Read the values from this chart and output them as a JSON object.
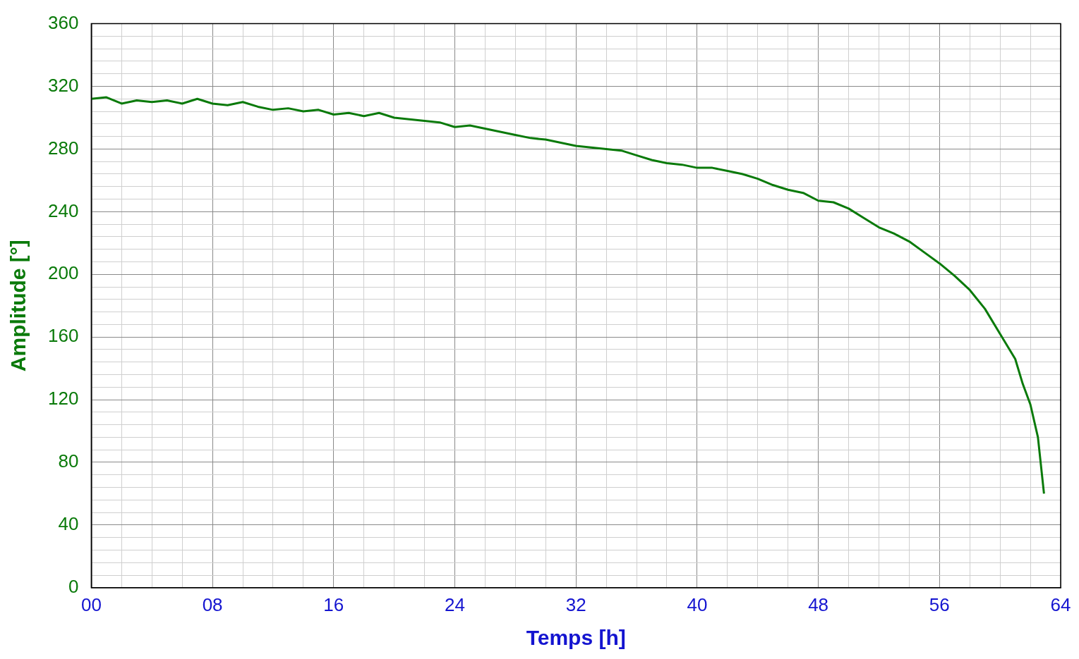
{
  "chart_data": {
    "type": "line",
    "xlabel": "Temps [h]",
    "ylabel": "Amplitude [°]",
    "series": [
      {
        "color": "#0a7a0a",
        "x": [
          0,
          1,
          2,
          3,
          4,
          5,
          6,
          7,
          8,
          9,
          10,
          11,
          12,
          13,
          14,
          15,
          16,
          17,
          18,
          19,
          20,
          21,
          22,
          23,
          24,
          25,
          26,
          27,
          28,
          29,
          30,
          31,
          32,
          33,
          34,
          35,
          36,
          37,
          38,
          39,
          40,
          41,
          42,
          43,
          44,
          45,
          46,
          47,
          48,
          49,
          50,
          51,
          52,
          53,
          54,
          55,
          56,
          57,
          58,
          59,
          60,
          60.5,
          61,
          61.5,
          62,
          62.5,
          62.9
        ],
        "values": [
          312,
          313,
          309,
          311,
          310,
          311,
          309,
          312,
          309,
          308,
          310,
          307,
          305,
          306,
          304,
          305,
          302,
          303,
          301,
          303,
          300,
          299,
          298,
          297,
          294,
          295,
          293,
          291,
          289,
          287,
          286,
          284,
          282,
          281,
          280,
          279,
          276,
          273,
          271,
          270,
          268,
          268,
          266,
          264,
          261,
          257,
          254,
          252,
          247,
          246,
          242,
          236,
          230,
          226,
          221,
          214,
          207,
          199,
          190,
          178,
          162,
          154,
          146,
          130,
          117,
          96,
          60
        ]
      }
    ],
    "xlim": [
      0,
      64
    ],
    "xticks": [
      {
        "value": 0,
        "label": "00"
      },
      {
        "value": 2,
        "label": null
      },
      {
        "value": 4,
        "label": null
      },
      {
        "value": 6,
        "label": null
      },
      {
        "value": 8,
        "label": "08"
      },
      {
        "value": 10,
        "label": null
      },
      {
        "value": 12,
        "label": null
      },
      {
        "value": 14,
        "label": null
      },
      {
        "value": 16,
        "label": "16"
      },
      {
        "value": 18,
        "label": null
      },
      {
        "value": 20,
        "label": null
      },
      {
        "value": 22,
        "label": null
      },
      {
        "value": 24,
        "label": "24"
      },
      {
        "value": 26,
        "label": null
      },
      {
        "value": 28,
        "label": null
      },
      {
        "value": 30,
        "label": null
      },
      {
        "value": 32,
        "label": "32"
      },
      {
        "value": 34,
        "label": null
      },
      {
        "value": 36,
        "label": null
      },
      {
        "value": 38,
        "label": null
      },
      {
        "value": 40,
        "label": "40"
      },
      {
        "value": 42,
        "label": null
      },
      {
        "value": 44,
        "label": null
      },
      {
        "value": 46,
        "label": null
      },
      {
        "value": 48,
        "label": "48"
      },
      {
        "value": 50,
        "label": null
      },
      {
        "value": 52,
        "label": null
      },
      {
        "value": 54,
        "label": null
      },
      {
        "value": 56,
        "label": "56"
      },
      {
        "value": 58,
        "label": null
      },
      {
        "value": 60,
        "label": null
      },
      {
        "value": 62,
        "label": null
      },
      {
        "value": 64,
        "label": "64"
      }
    ],
    "ylim": [
      0,
      360
    ],
    "yticks": [
      0,
      {
        "value": 8,
        "label": null
      },
      {
        "value": 16,
        "label": null
      },
      {
        "value": 24,
        "label": null
      },
      {
        "value": 32,
        "label": null
      },
      40,
      {
        "value": 48,
        "label": null
      },
      {
        "value": 56,
        "label": null
      },
      {
        "value": 64,
        "label": null
      },
      {
        "value": 72,
        "label": null
      },
      80,
      {
        "value": 88,
        "label": null
      },
      {
        "value": 96,
        "label": null
      },
      {
        "value": 104,
        "label": null
      },
      {
        "value": 112,
        "label": null
      },
      120,
      {
        "value": 128,
        "label": null
      },
      {
        "value": 136,
        "label": null
      },
      {
        "value": 144,
        "label": null
      },
      {
        "value": 152,
        "label": null
      },
      160,
      {
        "value": 168,
        "label": null
      },
      {
        "value": 176,
        "label": null
      },
      {
        "value": 184,
        "label": null
      },
      {
        "value": 192,
        "label": null
      },
      200,
      {
        "value": 208,
        "label": null
      },
      {
        "value": 216,
        "label": null
      },
      {
        "value": 224,
        "label": null
      },
      {
        "value": 232,
        "label": null
      },
      240,
      {
        "value": 248,
        "label": null
      },
      {
        "value": 256,
        "label": null
      },
      {
        "value": 264,
        "label": null
      },
      {
        "value": 272,
        "label": null
      },
      280,
      {
        "value": 288,
        "label": null
      },
      {
        "value": 296,
        "label": null
      },
      {
        "value": 304,
        "label": null
      },
      {
        "value": 312,
        "label": null
      },
      320,
      {
        "value": 328,
        "label": null
      },
      {
        "value": 336,
        "label": null
      },
      {
        "value": 344,
        "label": null
      },
      {
        "value": 352,
        "label": null
      },
      360
    ],
    "grid": true,
    "legend": false,
    "marker": "none",
    "line_style": "solid"
  }
}
